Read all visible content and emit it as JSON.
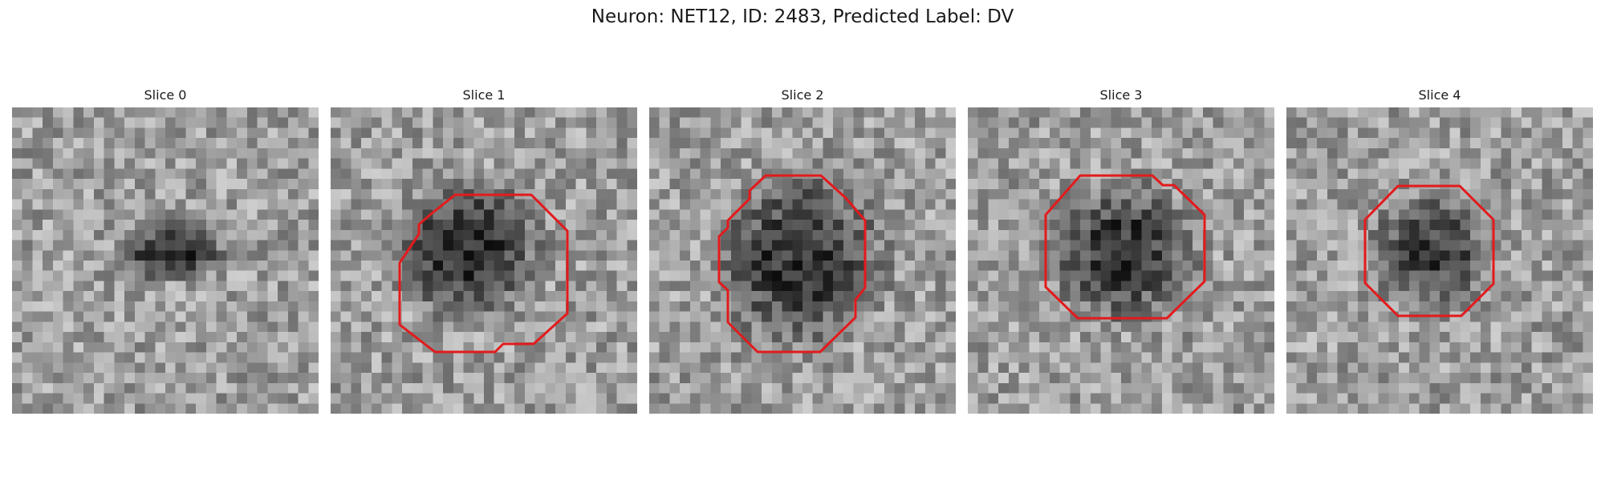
{
  "figure": {
    "suptitle": "Neuron: NET12, ID: 2483, Predicted Label: DV",
    "colormap": "gray",
    "contour_color": "#e31a1c"
  },
  "slices": [
    {
      "title": "Slice 0",
      "has_contour": false
    },
    {
      "title": "Slice 1",
      "has_contour": true
    },
    {
      "title": "Slice 2",
      "has_contour": true
    },
    {
      "title": "Slice 3",
      "has_contour": true
    },
    {
      "title": "Slice 4",
      "has_contour": true
    }
  ]
}
